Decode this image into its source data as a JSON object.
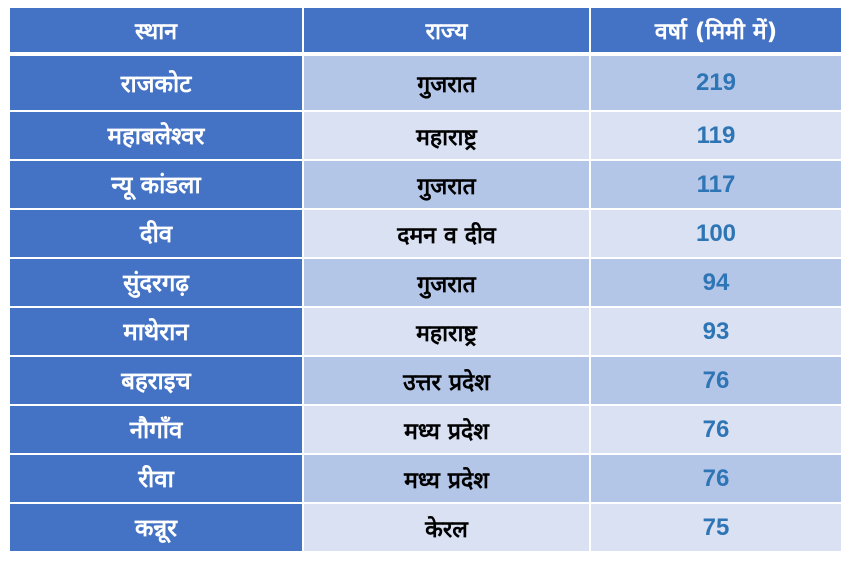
{
  "table": {
    "headers": [
      "स्थान",
      "राज्य",
      "वर्षा (मिमी में)"
    ],
    "rows": [
      {
        "place": "राजकोट",
        "state": "गुजरात",
        "rainfall": "219"
      },
      {
        "place": "महाबलेश्वर",
        "state": "महाराष्ट्र",
        "rainfall": "119"
      },
      {
        "place": "न्यू कांडला",
        "state": "गुजरात",
        "rainfall": "117"
      },
      {
        "place": "दीव",
        "state": "दमन व दीव",
        "rainfall": "100"
      },
      {
        "place": "सुंदरगढ़",
        "state": "गुजरात",
        "rainfall": "94"
      },
      {
        "place": "माथेरान",
        "state": "महाराष्ट्र",
        "rainfall": "93"
      },
      {
        "place": "बहराइच",
        "state": "उत्तर प्रदेश",
        "rainfall": "76"
      },
      {
        "place": "नौगाँव",
        "state": "मध्य प्रदेश",
        "rainfall": "76"
      },
      {
        "place": "रीवा",
        "state": "मध्य प्रदेश",
        "rainfall": "76"
      },
      {
        "place": "कन्नूर",
        "state": "केरल",
        "rainfall": "75"
      }
    ]
  },
  "colors": {
    "header_bg": "#4472c4",
    "row_odd": "#b4c6e7",
    "row_even": "#d9e1f2",
    "rainfall_text": "#2e75b6"
  }
}
